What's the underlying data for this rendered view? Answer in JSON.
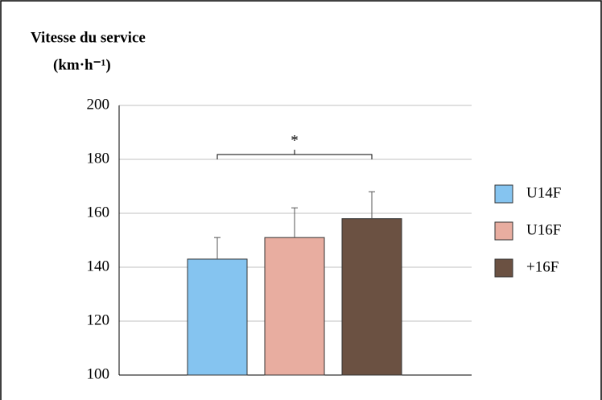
{
  "chart_data": {
    "type": "bar",
    "title": "Vitesse du service",
    "y_label": "(km·h⁻¹)",
    "series": [
      {
        "name": "U14F",
        "color": "#85c4f0",
        "values": [
          143
        ],
        "errors": [
          8
        ]
      },
      {
        "name": "U16F",
        "color": "#e8ada0",
        "values": [
          151
        ],
        "errors": [
          11
        ]
      },
      {
        "name": "+16F",
        "color": "#6b5142",
        "values": [
          158
        ],
        "errors": [
          10
        ]
      }
    ],
    "annotations": [
      {
        "text": "*"
      }
    ],
    "ylim": [
      100,
      200
    ],
    "yticks": [
      100,
      120,
      140,
      160,
      180,
      200
    ],
    "grid": true,
    "legend": "right"
  }
}
